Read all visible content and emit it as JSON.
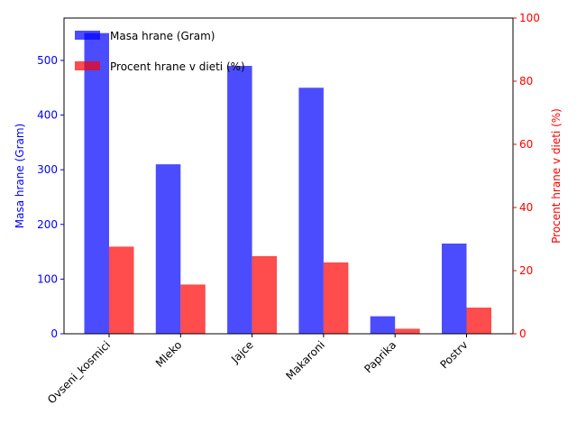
{
  "chart_data": {
    "type": "bar",
    "categories": [
      "Ovseni_kosmici",
      "Mleko",
      "Jajce",
      "Makaroni",
      "Paprika",
      "Postrv"
    ],
    "series": [
      {
        "name": "Masa hrane (Gram)",
        "axis": "left",
        "color": "#0000ff",
        "values": [
          550,
          310,
          490,
          450,
          32,
          165
        ]
      },
      {
        "name": "Procent hrane v dieti (%)",
        "axis": "right",
        "color": "#ff0000",
        "values": [
          27.6,
          15.6,
          24.6,
          22.6,
          1.6,
          8.3
        ]
      }
    ],
    "ylabel_left": "Masa hrane (Gram)",
    "ylabel_right": "Procent hrane v dieti (%)",
    "ylim_left": [
      0,
      577.5
    ],
    "ylim_right": [
      0,
      100
    ],
    "yticks_left": [
      0,
      100,
      200,
      300,
      400,
      500
    ],
    "yticks_right": [
      0,
      20,
      40,
      60,
      80,
      100
    ],
    "grid": false,
    "legend_position": "top-left",
    "bar_opacity": 0.7
  }
}
